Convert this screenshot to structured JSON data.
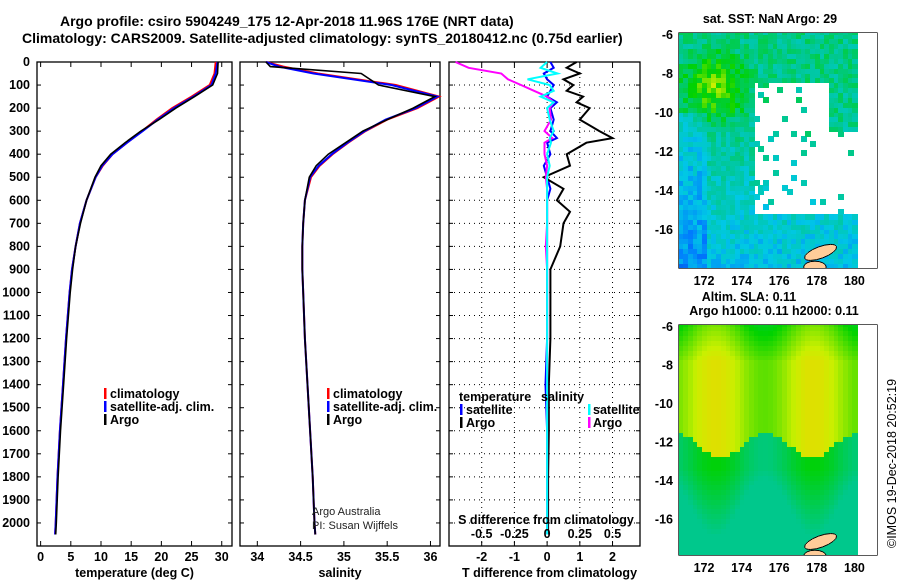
{
  "title": {
    "line1": "Argo profile: csiro 5904249_175 12-Apr-2018 11.96S 176E (NRT data)",
    "line2": "Climatology: CARS2009. Satellite-adjusted climatology: synTS_20180412.nc (0.75d earlier)"
  },
  "credit": {
    "line1": "Argo Australia",
    "line2": "PI: Susan Wijffels"
  },
  "stamp": "©IMOS 19-Dec-2018 20:52:19",
  "chart_data": [
    {
      "type": "line",
      "name": "temperature-profile",
      "xlabel": "temperature (deg C)",
      "ylabel": "depth",
      "xlim": [
        -0.6,
        31.7
      ],
      "ylim": [
        0,
        2100
      ],
      "xticks": [
        0,
        5,
        10,
        15,
        20,
        25,
        30
      ],
      "yticks": [
        0,
        100,
        200,
        300,
        400,
        500,
        600,
        700,
        800,
        900,
        1000,
        1100,
        1200,
        1300,
        1400,
        1500,
        1600,
        1700,
        1800,
        1900,
        2000
      ],
      "legend": [
        "climatology",
        "satellite-adj. clim.",
        "Argo"
      ],
      "depth": [
        0,
        50,
        100,
        150,
        200,
        250,
        300,
        350,
        400,
        450,
        500,
        600,
        700,
        800,
        900,
        1000,
        1200,
        1400,
        1600,
        1800,
        2000,
        2050
      ],
      "series": [
        {
          "name": "climatology",
          "color": "#ff0000",
          "values": [
            29.0,
            28.8,
            28.0,
            25.0,
            21.8,
            19.2,
            16.8,
            14.3,
            11.9,
            10.3,
            9.1,
            7.6,
            6.5,
            5.8,
            5.2,
            4.8,
            4.2,
            3.7,
            3.2,
            2.8,
            2.5,
            2.4
          ]
        },
        {
          "name": "satellite-adj. clim.",
          "color": "#0000ff",
          "values": [
            29.3,
            29.0,
            28.3,
            25.3,
            22.1,
            19.4,
            16.9,
            14.3,
            11.9,
            10.2,
            9.1,
            7.6,
            6.5,
            5.8,
            5.2,
            4.8,
            4.2,
            3.7,
            3.2,
            2.8,
            2.5,
            2.4
          ]
        },
        {
          "name": "Argo",
          "color": "#000000",
          "values": [
            29.4,
            29.3,
            28.5,
            25.5,
            22.4,
            19.6,
            16.6,
            14.0,
            11.6,
            10.0,
            9.0,
            7.6,
            6.6,
            5.8,
            5.3,
            4.9,
            4.3,
            3.8,
            3.3,
            2.9,
            2.6,
            2.5
          ]
        }
      ]
    },
    {
      "type": "line",
      "name": "salinity-profile",
      "xlabel": "salinity",
      "xlim": [
        33.8,
        36.11
      ],
      "ylim": [
        0,
        2100
      ],
      "xticks": [
        34,
        34.5,
        35,
        35.5,
        36
      ],
      "legend": [
        "climatology",
        "satellite-adj. clim.",
        "Argo"
      ],
      "depth": [
        0,
        20,
        50,
        100,
        150,
        200,
        250,
        300,
        350,
        400,
        450,
        500,
        600,
        700,
        800,
        900,
        1000,
        1200,
        1400,
        1600,
        1800,
        2000,
        2050
      ],
      "series": [
        {
          "name": "climatology",
          "color": "#ff0000",
          "values": [
            34.1,
            34.3,
            34.7,
            35.6,
            36.1,
            35.85,
            35.5,
            35.25,
            35.05,
            34.87,
            34.72,
            34.62,
            34.55,
            34.53,
            34.52,
            34.52,
            34.53,
            34.55,
            34.58,
            34.61,
            34.64,
            34.66,
            34.67
          ]
        },
        {
          "name": "satellite-adj. clim.",
          "color": "#0000ff",
          "values": [
            34.1,
            34.25,
            34.65,
            35.55,
            36.08,
            35.83,
            35.48,
            35.24,
            35.04,
            34.86,
            34.71,
            34.61,
            34.55,
            34.53,
            34.52,
            34.52,
            34.53,
            34.55,
            34.58,
            34.61,
            34.64,
            34.66,
            34.67
          ]
        },
        {
          "name": "Argo",
          "color": "#000000",
          "values": [
            34.1,
            34.15,
            35.2,
            35.4,
            36.05,
            35.8,
            35.5,
            35.22,
            35.02,
            34.82,
            34.68,
            34.6,
            34.55,
            34.53,
            34.52,
            34.52,
            34.53,
            34.55,
            34.58,
            34.61,
            34.64,
            34.66,
            34.67
          ]
        }
      ]
    },
    {
      "type": "line",
      "name": "difference-profile",
      "xlabel": "T difference from climatology",
      "x2label": "S difference from climatology",
      "xlim": [
        -3.0,
        2.84
      ],
      "ylim": [
        0,
        2100
      ],
      "xticks": [
        -2,
        -1,
        0,
        1,
        2
      ],
      "x2ticks": [
        -0.5,
        -0.25,
        0,
        0.25,
        0.5
      ],
      "legend_temperature": {
        "title": "temperature",
        "items": [
          "satellite",
          "Argo"
        ]
      },
      "legend_salinity": {
        "title": "salinity",
        "items": [
          "satellite",
          "Argo"
        ]
      },
      "depth": [
        0,
        25,
        50,
        75,
        100,
        125,
        150,
        175,
        200,
        250,
        300,
        330,
        350,
        400,
        450,
        500,
        550,
        600,
        650,
        700,
        800,
        900,
        1000,
        1200,
        1400,
        1600,
        1800,
        2000,
        2050
      ],
      "series": [
        {
          "name": "temperature satellite",
          "unit": "T",
          "color": "#0000ff",
          "values": [
            0.1,
            0.2,
            -0.1,
            0.0,
            0.2,
            0.1,
            0.0,
            0.3,
            0.1,
            0.2,
            0.1,
            0.3,
            0.0,
            0.1,
            -0.1,
            0.0,
            0.1,
            0.0,
            0.0,
            0.0,
            0.0,
            0.0,
            0.0,
            0.0,
            -0.05,
            0.0,
            0.0,
            0.0,
            0.0
          ]
        },
        {
          "name": "temperature Argo",
          "unit": "T",
          "color": "#000000",
          "values": [
            0.9,
            0.6,
            1.0,
            0.5,
            0.8,
            0.6,
            1.1,
            0.9,
            1.3,
            1.0,
            1.6,
            2.0,
            1.2,
            0.6,
            0.7,
            -0.1,
            0.5,
            0.3,
            0.7,
            0.5,
            0.4,
            0.1,
            0.1,
            0.1,
            0.05,
            0.05,
            0.03,
            0.03,
            0.03
          ]
        },
        {
          "name": "salinity satellite",
          "unit": "S",
          "color": "#00ffff",
          "values": [
            0.0,
            -0.05,
            0.08,
            -0.15,
            0.02,
            0.05,
            -0.05,
            0.05,
            0.0,
            0.02,
            0.05,
            0.02,
            0.03,
            0.0,
            0.02,
            0.0,
            0.0,
            0.0,
            0.0,
            0.0,
            0.0,
            0.0,
            0.0,
            0.0,
            0.0,
            0.0,
            0.0,
            0.0,
            0.0
          ]
        },
        {
          "name": "salinity Argo",
          "unit": "S",
          "color": "#ff00ff",
          "values": [
            -0.7,
            -0.6,
            -0.35,
            -0.3,
            -0.2,
            -0.1,
            0.0,
            0.05,
            0.02,
            0.03,
            -0.02,
            0.04,
            -0.02,
            -0.02,
            0.0,
            -0.01,
            0.0,
            0.0,
            0.0,
            0.0,
            -0.01,
            0.0,
            0.0,
            0.0,
            0.0,
            0.0,
            0.0,
            0.0,
            0.0
          ]
        }
      ]
    },
    {
      "type": "heatmap",
      "name": "sst-map",
      "title": "sat. SST: NaN Argo: 29",
      "xlim": [
        170.67,
        181.2
      ],
      "ylim": [
        -18.0,
        -5.95
      ],
      "xticks": [
        172,
        174,
        176,
        178,
        180
      ],
      "yticks": [
        -6,
        -8,
        -10,
        -12,
        -14,
        -16
      ],
      "float_position": {
        "lon": 176.0,
        "lat": -11.96
      }
    },
    {
      "type": "heatmap",
      "name": "sla-map",
      "title": "Altim. SLA: 0.11",
      "subtitle": "Argo h1000: 0.11 h2000: 0.11",
      "xlim": [
        170.67,
        181.2
      ],
      "ylim": [
        -17.9,
        -5.95
      ],
      "xticks": [
        172,
        174,
        176,
        178,
        180
      ],
      "yticks": [
        -6,
        -8,
        -10,
        -12,
        -14,
        -16
      ],
      "float_position": {
        "lon": 176.0,
        "lat": -11.96
      }
    }
  ]
}
